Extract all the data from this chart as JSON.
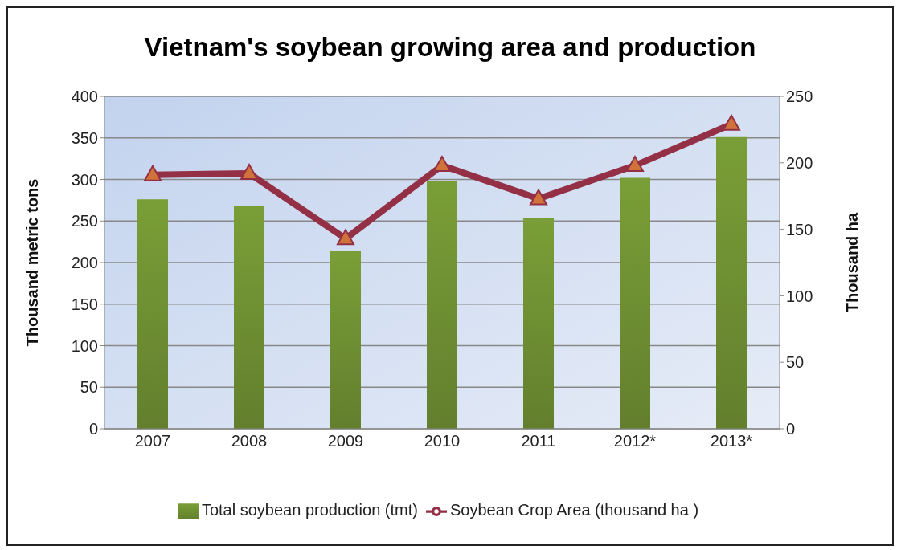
{
  "chart_data": {
    "type": "bar",
    "title": "Vietnam's soybean growing area and production",
    "ylabel": "Thousand metric tons",
    "y2label": "Thousand ha",
    "categories": [
      "2007",
      "2008",
      "2009",
      "2010",
      "2011",
      "2012*",
      "2013*"
    ],
    "series": [
      {
        "name": "Total soybean production (tmt)",
        "color": "#7a9e37",
        "values": [
          276,
          268,
          214,
          298,
          254,
          302,
          351
        ]
      },
      {
        "name": "Soybean Crop Area (thousand ha )",
        "type": "line",
        "axis": "y2",
        "color": "#943045",
        "marker": "triangle",
        "values": [
          191,
          192,
          143,
          198,
          173,
          198,
          229
        ]
      }
    ],
    "ylim": [
      0,
      400
    ],
    "yticks": [
      0,
      50,
      100,
      150,
      200,
      250,
      300,
      350,
      400
    ],
    "y2lim": [
      0,
      250
    ],
    "y2ticks": [
      0,
      50,
      100,
      150,
      200,
      250
    ],
    "grid": "y",
    "legend": "bottom"
  }
}
